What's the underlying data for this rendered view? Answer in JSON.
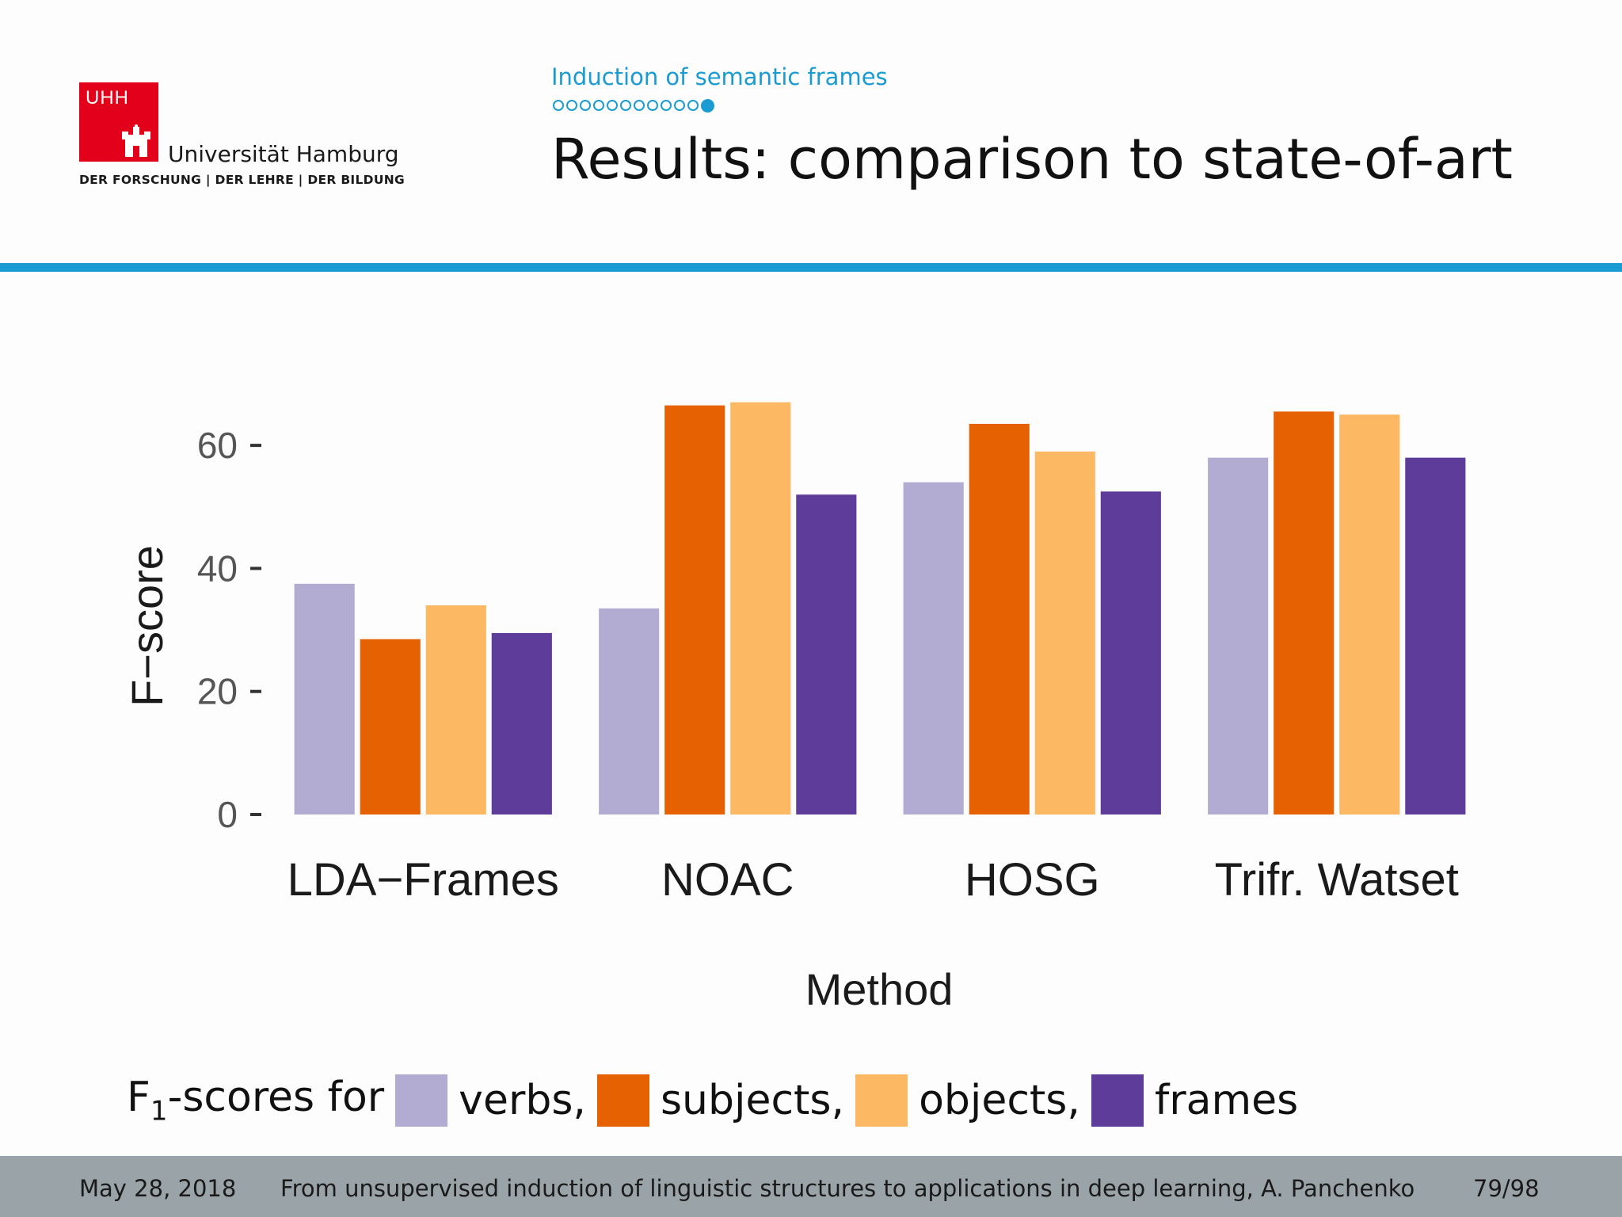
{
  "header": {
    "logo": {
      "mark": "UHH",
      "name": "Universität Hamburg",
      "tagline": "DER FORSCHUNG | DER LEHRE | DER BILDUNG"
    },
    "section": "Induction of semantic frames",
    "progress": {
      "total": 12,
      "current": 12
    },
    "title": "Results: comparison to state-of-art"
  },
  "chart_data": {
    "type": "bar",
    "xlabel": "Method",
    "ylabel": "F−score",
    "ylim": [
      0,
      68
    ],
    "yticks": [
      0,
      20,
      40,
      60
    ],
    "grid": false,
    "categories": [
      "LDA−Frames",
      "NOAC",
      "HOSG",
      "Trifr. Watset"
    ],
    "series": [
      {
        "name": "verbs",
        "color": "#b2abd2",
        "values": [
          37.5,
          33.5,
          54,
          58
        ]
      },
      {
        "name": "subjects",
        "color": "#e66101",
        "values": [
          28.5,
          66.5,
          63.5,
          65.5
        ]
      },
      {
        "name": "objects",
        "color": "#fdb863",
        "values": [
          34,
          67,
          59,
          65
        ]
      },
      {
        "name": "frames",
        "color": "#5e3c99",
        "values": [
          29.5,
          52,
          52.5,
          58
        ]
      }
    ]
  },
  "legend": {
    "prefix": "F",
    "prefix_sub": "1",
    "prefix_rest": "-scores for",
    "items": [
      {
        "label": "verbs,",
        "color": "#b2abd2"
      },
      {
        "label": "subjects,",
        "color": "#e66101"
      },
      {
        "label": "objects,",
        "color": "#fdb863"
      },
      {
        "label": "frames",
        "color": "#5e3c99"
      }
    ]
  },
  "footer": {
    "date": "May 28, 2018",
    "talk": "From unsupervised induction of linguistic structures to applications in deep learning, A. Panchenko",
    "page": "79/98"
  }
}
